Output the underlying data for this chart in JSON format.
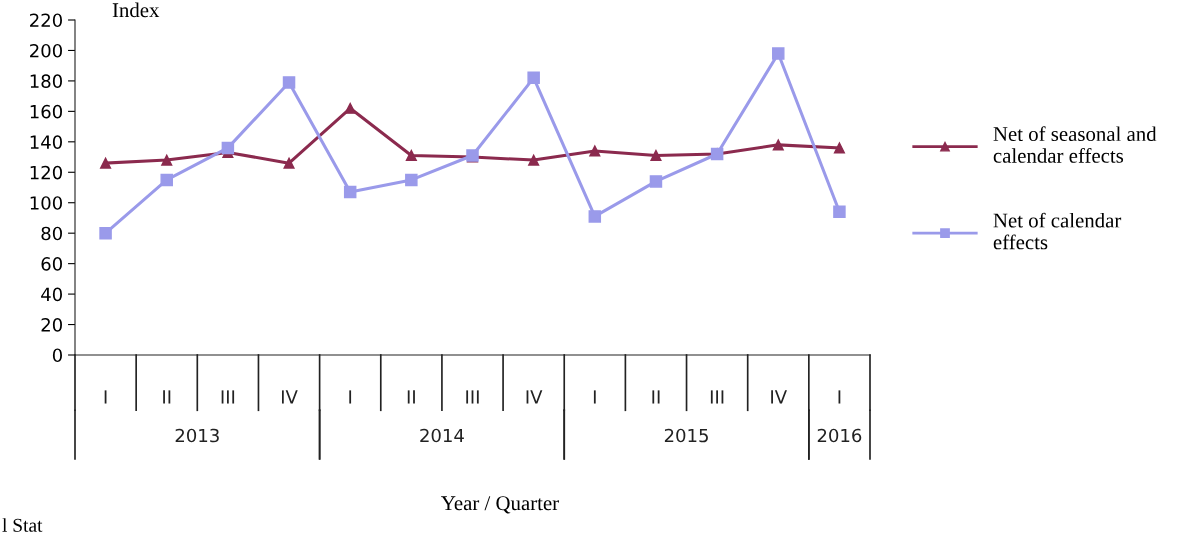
{
  "chart_data": {
    "type": "line",
    "ylabel": "Index",
    "xlabel": "Year / Quarter",
    "categories": [
      "I",
      "II",
      "III",
      "IV",
      "I",
      "II",
      "III",
      "IV",
      "I",
      "II",
      "III",
      "IV",
      "I"
    ],
    "series": [
      {
        "name": "Net of seasonal and calendar effects",
        "color": "#8b2a4e",
        "marker": "triangle",
        "values": [
          126,
          128,
          133,
          126,
          162,
          131,
          130,
          128,
          134,
          131,
          132,
          138,
          136
        ]
      },
      {
        "name": "Net of calendar effects",
        "color": "#9a9aea",
        "marker": "square",
        "values": [
          80,
          115,
          136,
          179,
          107,
          115,
          131,
          182,
          91,
          114,
          132,
          198,
          94
        ]
      }
    ],
    "ylim": [
      0,
      220
    ],
    "yticks": [
      0,
      20,
      40,
      60,
      80,
      100,
      120,
      140,
      160,
      180,
      200,
      220
    ],
    "grid": false,
    "legend": "right",
    "line_style": "solid",
    "annotations": [
      "2013",
      "2014",
      "2015",
      "2016",
      "l Stat"
    ]
  }
}
